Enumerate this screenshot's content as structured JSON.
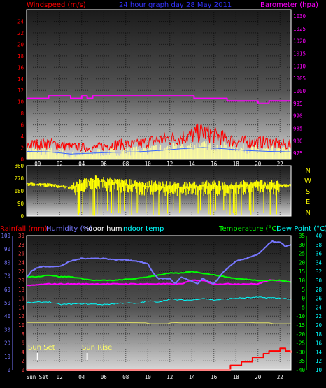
{
  "header": {
    "left_title": "Windspeed (m/s)",
    "center_title": "24 hour graph day  28 May 2011",
    "right_title": "Barometer (hpa)"
  },
  "panel3": {
    "label_rain": "Rainfall (mm)",
    "label_humidity": "Humidity (%)",
    "label_indoor_hum": "Indoor hum",
    "label_indoor_temp": "Indoor temp",
    "label_temperature": "Temperature (°C)",
    "label_dewpoint": "Dew Point (°C)",
    "label_sunset": "Sun Set",
    "label_sunrise": "Sun Rise",
    "x_first_label": "Sun Set"
  },
  "colors": {
    "wind": "#ff0000",
    "gust": "#ffff99",
    "barometer": "#ff00ff",
    "direction": "#ffff00",
    "humidity": "#7777ff",
    "indoor_hum": "#ffffff",
    "indoor_temp": "#00ffff",
    "temperature": "#00ff00",
    "dewpoint": "#ff00ff",
    "rain": "#ff0000",
    "frame": "#ffffff"
  },
  "chart_data": [
    {
      "type": "line",
      "title": "24 hour graph day  28 May 2011",
      "x_tick_labels": [
        "00",
        "02",
        "04",
        "06",
        "08",
        "10",
        "12",
        "14",
        "16",
        "18",
        "20",
        "22"
      ],
      "x_range_hours": [
        -1,
        23
      ],
      "left_axis": {
        "label": "Windspeed (m/s)",
        "ylim": [
          0,
          26
        ],
        "ticks": [
          0,
          2,
          4,
          6,
          8,
          10,
          12,
          14,
          16,
          18,
          20,
          22,
          24
        ]
      },
      "right_axis": {
        "label": "Barometer (hpa)",
        "ylim": [
          972.5,
          1032.5
        ],
        "ticks": [
          975,
          980,
          985,
          990,
          995,
          1000,
          1005,
          1010,
          1015,
          1020,
          1025,
          1030
        ]
      },
      "series": [
        {
          "name": "Windspeed (m/s)",
          "axis": "left",
          "x": [
            -1,
            1,
            3,
            5,
            7,
            9,
            11,
            13,
            14,
            15,
            16,
            17,
            18,
            19,
            20,
            21,
            22,
            23
          ],
          "values": [
            2.5,
            2.8,
            2.2,
            2.0,
            2.6,
            2.6,
            3.4,
            3.8,
            4.2,
            4.8,
            4.2,
            3.6,
            3.2,
            3.0,
            3.0,
            3.0,
            2.6,
            2.5
          ]
        },
        {
          "name": "Gust",
          "axis": "left",
          "x": [
            -1,
            1,
            3,
            5,
            7,
            9,
            11,
            13,
            15,
            17,
            19,
            21,
            23
          ],
          "values": [
            1.6,
            1.5,
            1.0,
            1.2,
            1.4,
            1.5,
            1.8,
            2.2,
            2.5,
            2.2,
            1.8,
            1.6,
            1.5
          ]
        },
        {
          "name": "Barometer (hpa)",
          "axis": "right",
          "x": [
            -1,
            0.5,
            1,
            1.5,
            2,
            3,
            3.5,
            4,
            4.5,
            5,
            6,
            8,
            10,
            12,
            14,
            14.2,
            16,
            17.2,
            18,
            19.5,
            20,
            21,
            22,
            23
          ],
          "values": [
            997,
            997,
            998,
            998,
            998,
            997,
            997,
            998,
            997,
            998,
            998,
            998,
            998,
            998,
            998,
            997,
            997,
            996,
            996,
            996,
            995,
            996,
            996,
            996
          ]
        }
      ]
    },
    {
      "type": "line",
      "title": "Wind direction",
      "x_range_hours": [
        -1,
        23
      ],
      "left_axis": {
        "ylim": [
          0,
          360
        ],
        "ticks": [
          0,
          90,
          180,
          270,
          360
        ]
      },
      "right_axis": {
        "ticks": [
          "N",
          "W",
          "S",
          "E",
          "N"
        ]
      },
      "series": [
        {
          "name": "Wind direction",
          "x": [
            -1,
            1,
            3,
            5,
            7,
            9,
            11,
            13,
            15,
            17,
            19,
            21,
            23
          ],
          "values": [
            230,
            225,
            205,
            250,
            240,
            215,
            210,
            205,
            215,
            210,
            220,
            215,
            220
          ]
        }
      ]
    },
    {
      "type": "line",
      "title": "",
      "x_tick_labels": [
        "Sun Set",
        "02",
        "04",
        "06",
        "08",
        "10",
        "12",
        "14",
        "16",
        "18",
        "20",
        "22"
      ],
      "x_range_hours": [
        -1,
        23
      ],
      "axes": {
        "humidity": {
          "label": "Humidity (%)",
          "ylim": [
            0,
            100
          ],
          "ticks": [
            0,
            10,
            20,
            30,
            40,
            50,
            60,
            70,
            80,
            90,
            100
          ]
        },
        "rainfall": {
          "label": "Rainfall (mm)",
          "ylim": [
            0,
            30
          ],
          "ticks": [
            0,
            2,
            4,
            6,
            8,
            10,
            12,
            14,
            16,
            18,
            20,
            22,
            24,
            26,
            28,
            30
          ]
        },
        "temperature": {
          "label": "Temperature (°C)",
          "ylim": [
            -40,
            35
          ],
          "ticks": [
            -40,
            -35,
            -30,
            -25,
            -20,
            -15,
            -10,
            -5,
            0,
            5,
            10,
            15,
            20,
            25,
            30,
            35
          ]
        },
        "dewpoint": {
          "label": "Dew Point (°C)",
          "ylim": [
            10,
            40
          ],
          "ticks": [
            10,
            12,
            14,
            16,
            18,
            20,
            22,
            24,
            26,
            28,
            30,
            32,
            34,
            36,
            38,
            40
          ]
        }
      },
      "sunset_hour": 0,
      "sunrise_hour": 4.5,
      "series": [
        {
          "name": "Humidity (%)",
          "axis": "humidity",
          "x": [
            -1,
            -0.5,
            0,
            0.5,
            1,
            2,
            3,
            4,
            5,
            6,
            7,
            8,
            9,
            10,
            10.5,
            11,
            12,
            12.5,
            13,
            14,
            14.5,
            15,
            15.5,
            16,
            17,
            18,
            19,
            20,
            21,
            21.3,
            21.5,
            22,
            22.5,
            23
          ],
          "values": [
            69,
            74,
            76,
            77,
            77,
            77,
            81,
            83,
            83,
            83,
            82,
            82,
            81,
            79,
            72,
            68,
            68,
            64,
            69,
            66,
            64,
            68,
            66,
            64,
            74,
            81,
            83,
            86,
            94,
            96,
            95,
            95,
            92,
            93
          ]
        },
        {
          "name": "Indoor hum",
          "axis": "rainfall",
          "x": [
            -1,
            6,
            10,
            10.1,
            12,
            12.2,
            13,
            16,
            17,
            19,
            20,
            21,
            21.2,
            23
          ],
          "values": [
            10.6,
            10.6,
            10.5,
            10.3,
            10.3,
            10.6,
            10.5,
            10.5,
            10.6,
            10.6,
            10.5,
            10.5,
            10.3,
            10.3
          ]
        },
        {
          "name": "Indoor temp",
          "axis": "rainfall",
          "x": [
            -1,
            1,
            2,
            4,
            6,
            7,
            8,
            9,
            10,
            11,
            12,
            13,
            14,
            15,
            16,
            17,
            18,
            20,
            22,
            23
          ],
          "values": [
            15.0,
            15.2,
            14.6,
            14.8,
            14.6,
            14.8,
            15.0,
            14.8,
            15.4,
            15.2,
            15.8,
            15.6,
            15.6,
            16.0,
            15.6,
            15.8,
            16.0,
            16.2,
            16.0,
            15.8
          ]
        },
        {
          "name": "Temperature (°C)",
          "axis": "temperature",
          "x": [
            -1,
            0,
            1,
            2,
            3,
            5,
            7,
            9,
            10,
            11,
            12,
            13,
            14,
            15,
            16,
            17,
            18,
            20,
            22,
            23
          ],
          "values": [
            12,
            12,
            13,
            12,
            12,
            10,
            10,
            11,
            12,
            13,
            14,
            14,
            15,
            14,
            13,
            12,
            11,
            10,
            10,
            9
          ]
        },
        {
          "name": "Dew Point (°C)",
          "axis": "temperature",
          "x": [
            -1,
            1,
            3,
            5,
            7,
            9,
            10,
            11,
            12,
            13,
            14,
            15,
            16,
            17,
            18,
            20,
            21,
            22,
            23
          ],
          "values": [
            7,
            8,
            8,
            8,
            8,
            8,
            8,
            8,
            8,
            8,
            10,
            10,
            8,
            8,
            8,
            8,
            10,
            10,
            9
          ]
        },
        {
          "name": "Rainfall (mm)",
          "axis": "rainfall",
          "x": [
            -1,
            17,
            17.5,
            18.5,
            19.5,
            20.5,
            21,
            22,
            22.5,
            23
          ],
          "values": [
            0,
            0,
            1.0,
            1.8,
            2.8,
            3.6,
            4.2,
            4.8,
            4.2,
            3.8
          ]
        }
      ]
    }
  ]
}
